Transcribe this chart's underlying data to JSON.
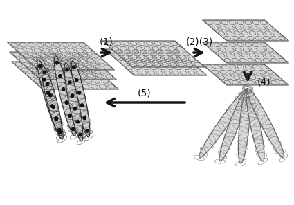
{
  "bg_color": "#ffffff",
  "arrow_color": "#111111",
  "sheet_light": "#e0e0e0",
  "sheet_mid": "#c8c8c8",
  "sheet_dark": "#b0b0b0",
  "sheet_edge": "#444444",
  "hex_edge": "#555555",
  "tube_fill": "#d8d8d8",
  "tube_edge": "#555555",
  "dot_color": "#111111",
  "step_labels": [
    "(1)",
    "(2)(3)",
    "(4)",
    "(5)"
  ],
  "step_fontsize": 10,
  "fig_width": 4.25,
  "fig_height": 2.96,
  "dpi": 100
}
